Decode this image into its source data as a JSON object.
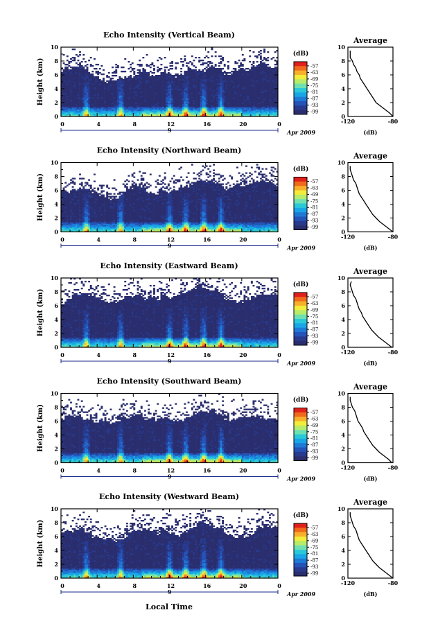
{
  "figure": {
    "xaxis_label": "Local Time",
    "date_label": "Apr 2009",
    "date_marker": "9"
  },
  "chart_data": [
    {
      "type": "heatmap",
      "title": "Echo Intensity (Vertical Beam)",
      "ylabel": "Height (km)",
      "xlim": [
        0,
        24
      ],
      "ylim": [
        0,
        10
      ],
      "x_ticks": [
        "0",
        "4",
        "8",
        "12",
        "16",
        "20",
        "0"
      ],
      "y_ticks": [
        "0",
        "2",
        "4",
        "6",
        "8",
        "10"
      ],
      "colorbar": {
        "unit": "(dB)",
        "labels": [
          "-57",
          "-63",
          "-69",
          "-75",
          "-81",
          "-87",
          "-93",
          "-99"
        ]
      },
      "profile": {
        "title": "Average",
        "xlabel": "(dB)",
        "x_ticks": [
          "-120",
          "-80"
        ],
        "xlim": [
          -120,
          -80
        ],
        "heights": [
          0,
          0.5,
          1,
          1.5,
          2,
          2.5,
          3,
          3.5,
          4,
          4.5,
          5,
          5.5,
          6,
          6.5,
          7,
          7.5,
          8,
          8.5,
          9,
          9.5
        ],
        "values": [
          -80,
          -83,
          -87,
          -91,
          -95,
          -97,
          -99,
          -101,
          -103,
          -105,
          -107,
          -109,
          -110,
          -112,
          -113,
          -115,
          -116,
          -118,
          -118,
          -118
        ]
      }
    },
    {
      "type": "heatmap",
      "title": "Echo Intensity (Northward Beam)",
      "ylabel": "Height (km)",
      "xlim": [
        0,
        24
      ],
      "ylim": [
        0,
        10
      ],
      "x_ticks": [
        "0",
        "4",
        "8",
        "12",
        "16",
        "20",
        "0"
      ],
      "y_ticks": [
        "0",
        "2",
        "4",
        "6",
        "8",
        "10"
      ],
      "colorbar": {
        "unit": "(dB)",
        "labels": [
          "-57",
          "-63",
          "-69",
          "-75",
          "-81",
          "-87",
          "-93",
          "-99"
        ]
      },
      "profile": {
        "title": "Average",
        "xlabel": "(dB)",
        "x_ticks": [
          "-120",
          "-80"
        ],
        "xlim": [
          -120,
          -80
        ],
        "heights": [
          0,
          0.5,
          1,
          1.5,
          2,
          2.5,
          3,
          3.5,
          4,
          4.5,
          5,
          5.5,
          6,
          6.5,
          7,
          7.5,
          8,
          8.5,
          9,
          9.5
        ],
        "values": [
          -80,
          -84,
          -88,
          -92,
          -95,
          -98,
          -100,
          -102,
          -104,
          -106,
          -108,
          -110,
          -111,
          -112,
          -113,
          -115,
          -116,
          -117,
          -118,
          -118
        ]
      }
    },
    {
      "type": "heatmap",
      "title": "Echo Intensity (Eastward Beam)",
      "ylabel": "Height (km)",
      "xlim": [
        0,
        24
      ],
      "ylim": [
        0,
        10
      ],
      "x_ticks": [
        "0",
        "4",
        "8",
        "12",
        "16",
        "20",
        "0"
      ],
      "y_ticks": [
        "0",
        "2",
        "4",
        "6",
        "8",
        "10"
      ],
      "colorbar": {
        "unit": "(dB)",
        "labels": [
          "-57",
          "-63",
          "-69",
          "-75",
          "-81",
          "-87",
          "-93",
          "-99"
        ]
      },
      "profile": {
        "title": "Average",
        "xlabel": "(dB)",
        "x_ticks": [
          "-120",
          "-80"
        ],
        "xlim": [
          -120,
          -80
        ],
        "heights": [
          0,
          0.5,
          1,
          1.5,
          2,
          2.5,
          3,
          3.5,
          4,
          4.5,
          5,
          5.5,
          6,
          6.5,
          7,
          7.5,
          8,
          8.5,
          9,
          9.5
        ],
        "values": [
          -81,
          -85,
          -89,
          -93,
          -96,
          -99,
          -101,
          -103,
          -105,
          -107,
          -108,
          -110,
          -111,
          -112,
          -113,
          -115,
          -116,
          -117,
          -118,
          -117
        ]
      }
    },
    {
      "type": "heatmap",
      "title": "Echo Intensity (Southward Beam)",
      "ylabel": "Height (km)",
      "xlim": [
        0,
        24
      ],
      "ylim": [
        0,
        10
      ],
      "x_ticks": [
        "0",
        "4",
        "8",
        "12",
        "16",
        "20",
        "0"
      ],
      "y_ticks": [
        "0",
        "2",
        "4",
        "6",
        "8",
        "10"
      ],
      "colorbar": {
        "unit": "(dB)",
        "labels": [
          "-57",
          "-63",
          "-69",
          "-75",
          "-81",
          "-87",
          "-93",
          "-99"
        ]
      },
      "profile": {
        "title": "Average",
        "xlabel": "(dB)",
        "x_ticks": [
          "-120",
          "-80"
        ],
        "xlim": [
          -120,
          -80
        ],
        "heights": [
          0,
          0.5,
          1,
          1.5,
          2,
          2.5,
          3,
          3.5,
          4,
          4.5,
          5,
          5.5,
          6,
          6.5,
          7,
          7.5,
          8,
          8.5,
          9,
          9.5
        ],
        "values": [
          -81,
          -84,
          -88,
          -92,
          -95,
          -98,
          -100,
          -102,
          -104,
          -106,
          -107,
          -109,
          -111,
          -112,
          -113,
          -114,
          -116,
          -117,
          -118,
          -118
        ]
      }
    },
    {
      "type": "heatmap",
      "title": "Echo Intensity (Westward Beam)",
      "ylabel": "Height (km)",
      "xlim": [
        0,
        24
      ],
      "ylim": [
        0,
        10
      ],
      "x_ticks": [
        "0",
        "4",
        "8",
        "12",
        "16",
        "20",
        "0"
      ],
      "y_ticks": [
        "0",
        "2",
        "4",
        "6",
        "8",
        "10"
      ],
      "colorbar": {
        "unit": "(dB)",
        "labels": [
          "-57",
          "-63",
          "-69",
          "-75",
          "-81",
          "-87",
          "-93",
          "-99"
        ]
      },
      "profile": {
        "title": "Average",
        "xlabel": "(dB)",
        "x_ticks": [
          "-120",
          "-80"
        ],
        "xlim": [
          -120,
          -80
        ],
        "heights": [
          0,
          0.5,
          1,
          1.5,
          2,
          2.5,
          3,
          3.5,
          4,
          4.5,
          5,
          5.5,
          6,
          6.5,
          7,
          7.5,
          8,
          8.5,
          9,
          9.5
        ],
        "values": [
          -80,
          -84,
          -88,
          -92,
          -95,
          -98,
          -100,
          -102,
          -104,
          -106,
          -108,
          -110,
          -111,
          -112,
          -113,
          -115,
          -116,
          -117,
          -118,
          -118
        ]
      }
    }
  ]
}
